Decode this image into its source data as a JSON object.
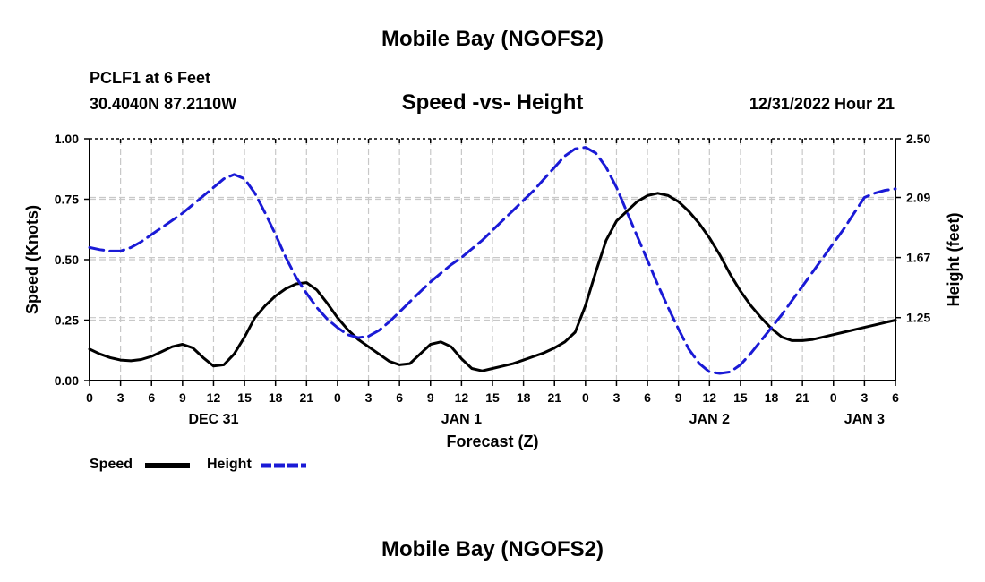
{
  "title": "Mobile Bay (NGOFS2)",
  "footer_title": "Mobile Bay (NGOFS2)",
  "station": "PCLF1 at 6 Feet",
  "coordinates": "30.4040N  87.2110W",
  "subtitle": "Speed -vs- Height",
  "datetime": "12/31/2022 Hour 21",
  "colors": {
    "speed": "#000000",
    "height": "#1a1ad6",
    "grid": "#c8c8c8"
  },
  "chart_data": {
    "type": "line",
    "xlabel": "Forecast (Z)",
    "ylabel": "Speed (Knots)",
    "y2label": "Height (feet)",
    "xlim": [
      0,
      78
    ],
    "ylim": [
      0,
      1.0
    ],
    "y2lim": [
      0.81,
      2.5
    ],
    "yticks": [
      "0.00",
      "0.25",
      "0.50",
      "0.75",
      "1.00"
    ],
    "y2ticks": [
      "1.25",
      "1.67",
      "2.09",
      "2.50"
    ],
    "xtick_labels": [
      "0",
      "3",
      "6",
      "9",
      "12",
      "15",
      "18",
      "21",
      "0",
      "3",
      "6",
      "9",
      "12",
      "15",
      "18",
      "21",
      "0",
      "3",
      "6",
      "9",
      "12",
      "15",
      "18",
      "21",
      "0",
      "3",
      "6"
    ],
    "day_labels": [
      {
        "label": "DEC 31",
        "hour": 12
      },
      {
        "label": "JAN 1",
        "hour": 36
      },
      {
        "label": "JAN 2",
        "hour": 60
      },
      {
        "label": "JAN 3",
        "hour": 75
      }
    ],
    "series": [
      {
        "name": "Speed",
        "axis": "left",
        "style": "solid",
        "x": [
          0,
          1,
          2,
          3,
          4,
          5,
          6,
          7,
          8,
          9,
          10,
          11,
          12,
          13,
          14,
          15,
          16,
          17,
          18,
          19,
          20,
          21,
          22,
          23,
          24,
          25,
          26,
          27,
          28,
          29,
          30,
          31,
          32,
          33,
          34,
          35,
          36,
          37,
          38,
          39,
          40,
          41,
          42,
          43,
          44,
          45,
          46,
          47,
          48,
          49,
          50,
          51,
          52,
          53,
          54,
          55,
          56,
          57,
          58,
          59,
          60,
          61,
          62,
          63,
          64,
          65,
          66,
          67,
          68,
          69,
          70,
          71,
          72,
          73,
          74,
          75,
          76,
          77,
          78
        ],
        "values": [
          0.13,
          0.11,
          0.095,
          0.085,
          0.082,
          0.087,
          0.1,
          0.12,
          0.14,
          0.15,
          0.135,
          0.095,
          0.06,
          0.065,
          0.11,
          0.18,
          0.26,
          0.31,
          0.35,
          0.38,
          0.4,
          0.405,
          0.375,
          0.32,
          0.26,
          0.21,
          0.17,
          0.14,
          0.11,
          0.08,
          0.065,
          0.07,
          0.11,
          0.15,
          0.16,
          0.14,
          0.09,
          0.05,
          0.04,
          0.05,
          0.06,
          0.07,
          0.085,
          0.1,
          0.115,
          0.135,
          0.16,
          0.2,
          0.31,
          0.45,
          0.58,
          0.66,
          0.7,
          0.74,
          0.765,
          0.775,
          0.765,
          0.74,
          0.7,
          0.65,
          0.59,
          0.52,
          0.44,
          0.37,
          0.31,
          0.26,
          0.215,
          0.18,
          0.165,
          0.165,
          0.17,
          0.18,
          0.19,
          0.2,
          0.21,
          0.22,
          0.23,
          0.24,
          0.25
        ]
      },
      {
        "name": "Height",
        "axis": "right",
        "style": "dashed",
        "x": [
          0,
          1,
          2,
          3,
          4,
          5,
          6,
          7,
          8,
          9,
          10,
          11,
          12,
          13,
          14,
          15,
          16,
          17,
          18,
          19,
          20,
          21,
          22,
          23,
          24,
          25,
          26,
          27,
          28,
          29,
          30,
          31,
          32,
          33,
          34,
          35,
          36,
          37,
          38,
          39,
          40,
          41,
          42,
          43,
          44,
          45,
          46,
          47,
          48,
          49,
          50,
          51,
          52,
          53,
          54,
          55,
          56,
          57,
          58,
          59,
          60,
          61,
          62,
          63,
          64,
          65,
          66,
          67,
          68,
          69,
          70,
          71,
          72,
          73,
          74,
          75,
          76,
          77,
          78
        ],
        "values": [
          1.74,
          1.725,
          1.715,
          1.715,
          1.74,
          1.78,
          1.83,
          1.88,
          1.93,
          1.98,
          2.04,
          2.1,
          2.16,
          2.22,
          2.25,
          2.22,
          2.12,
          1.98,
          1.83,
          1.67,
          1.53,
          1.42,
          1.32,
          1.24,
          1.18,
          1.13,
          1.11,
          1.12,
          1.16,
          1.22,
          1.29,
          1.36,
          1.43,
          1.5,
          1.56,
          1.62,
          1.67,
          1.73,
          1.79,
          1.86,
          1.93,
          2.0,
          2.07,
          2.14,
          2.22,
          2.3,
          2.38,
          2.43,
          2.44,
          2.4,
          2.3,
          2.16,
          1.99,
          1.82,
          1.65,
          1.48,
          1.32,
          1.17,
          1.03,
          0.93,
          0.87,
          0.86,
          0.87,
          0.92,
          1.0,
          1.09,
          1.18,
          1.27,
          1.37,
          1.47,
          1.57,
          1.67,
          1.77,
          1.87,
          1.98,
          2.09,
          2.12,
          2.14,
          2.15
        ]
      }
    ],
    "legend": [
      {
        "label": "Speed"
      },
      {
        "label": "Height"
      }
    ]
  }
}
